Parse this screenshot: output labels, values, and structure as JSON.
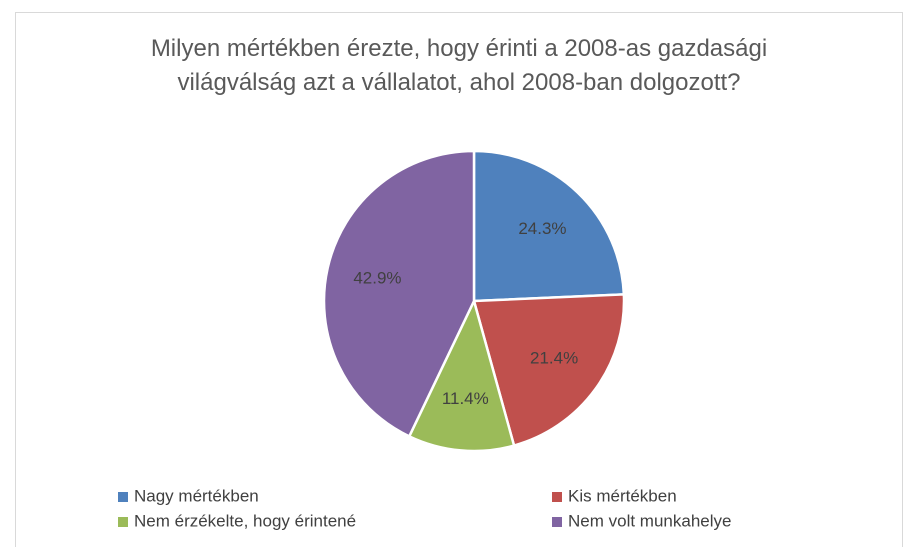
{
  "chart_data": {
    "type": "pie",
    "title": "Milyen mértékben érezte, hogy érinti a 2008-as gazdasági világválság azt a vállalatot, ahol 2008-ban dolgozott?",
    "categories": [
      "Nagy mértékben",
      "Kis mértékben",
      "Nem érzékelte, hogy érintené",
      "Nem volt munkahelye"
    ],
    "values": [
      24.3,
      21.4,
      11.4,
      42.9
    ],
    "value_labels": [
      "24.3%",
      "21.4%",
      "11.4%",
      "42.9%"
    ],
    "colors": [
      "#4f81bd",
      "#c0504d",
      "#9bbb59",
      "#8064a2"
    ],
    "legend": "bottom"
  }
}
